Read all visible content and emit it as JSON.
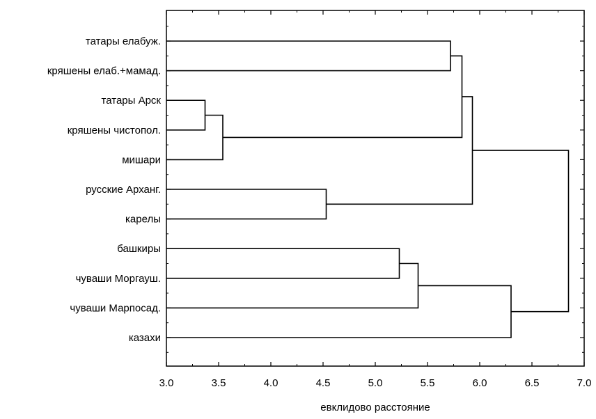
{
  "chart_data": {
    "type": "dendrogram",
    "orientation": "horizontal",
    "xlabel": "евклидово расстояние",
    "xlim": [
      3.0,
      7.0
    ],
    "x_ticks": [
      "3.0",
      "3.5",
      "4.0",
      "4.5",
      "5.0",
      "5.5",
      "6.0",
      "6.5",
      "7.0"
    ],
    "x_tick_values": [
      3.0,
      3.5,
      4.0,
      4.5,
      5.0,
      5.5,
      6.0,
      6.5,
      7.0
    ],
    "grid": false,
    "leaves": [
      "татары елабуж.",
      "кряшены елаб.+мамад.",
      "татары Арск",
      "кряшены чистопол.",
      "мишари",
      "русские Арханг.",
      "карелы",
      "башкиры",
      "чуваши Моргауш.",
      "чуваши Марпосад.",
      "казахи"
    ],
    "merges": [
      {
        "id": "c1",
        "children": [
          "L2",
          "L3"
        ],
        "height": 3.37
      },
      {
        "id": "c2",
        "children": [
          "c1",
          "L4"
        ],
        "height": 3.54
      },
      {
        "id": "c3",
        "children": [
          "L5",
          "L6"
        ],
        "height": 4.53
      },
      {
        "id": "c4",
        "children": [
          "L7",
          "L8"
        ],
        "height": 5.23
      },
      {
        "id": "c5",
        "children": [
          "c4",
          "L9"
        ],
        "height": 5.41
      },
      {
        "id": "c6",
        "children": [
          "L0",
          "L1"
        ],
        "height": 5.72
      },
      {
        "id": "c7",
        "children": [
          "c6",
          "c2"
        ],
        "height": 5.83
      },
      {
        "id": "c8",
        "children": [
          "c7",
          "c3"
        ],
        "height": 5.93
      },
      {
        "id": "c9",
        "children": [
          "c5",
          "L10"
        ],
        "height": 6.3
      },
      {
        "id": "c10",
        "children": [
          "c8",
          "c9"
        ],
        "height": 6.85
      }
    ]
  }
}
